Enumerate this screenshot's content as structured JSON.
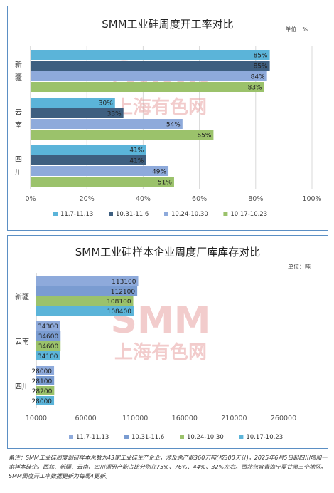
{
  "charts": [
    {
      "title": "SMM工业硅周度开工率对比",
      "unit": "单位：%",
      "chart_data": {
        "type": "bar",
        "orientation": "horizontal",
        "categories": [
          "新疆",
          "云南",
          "四川"
        ],
        "series": [
          {
            "name": "11.7-11.13",
            "color": "#5bb4d9",
            "values": [
              85,
              30,
              41
            ],
            "labels": [
              "85%",
              "30%",
              "41%"
            ]
          },
          {
            "name": "10.31-11.6",
            "color": "#3e5f80",
            "values": [
              85,
              33,
              41
            ],
            "labels": [
              "85%",
              "33%",
              "41%"
            ]
          },
          {
            "name": "10.24-10.30",
            "color": "#8eaadb",
            "values": [
              84,
              54,
              49
            ],
            "labels": [
              "84%",
              "54%",
              "49%"
            ]
          },
          {
            "name": "10.17-10.23",
            "color": "#9bc26b",
            "values": [
              83,
              65,
              51
            ],
            "labels": [
              "83%",
              "65%",
              "51%"
            ]
          }
        ],
        "xlim": [
          0,
          100
        ],
        "xticks": [
          "0%",
          "20%",
          "40%",
          "60%",
          "80%",
          "100%"
        ],
        "xtick_values": [
          0,
          20,
          40,
          60,
          80,
          100
        ],
        "grid": true,
        "legend": "bottom"
      }
    },
    {
      "title": "SMM工业硅样本企业周度厂库库存对比",
      "unit": "单位：吨",
      "chart_data": {
        "type": "bar",
        "orientation": "horizontal",
        "categories": [
          "新疆",
          "云南",
          "四川"
        ],
        "series": [
          {
            "name": "11.7-11.13",
            "color": "#8eaadb",
            "values": [
              113100,
              34300,
              28000
            ],
            "labels": [
              "113100",
              "34300",
              "28000"
            ]
          },
          {
            "name": "10.31-11.6",
            "color": "#7a9cd1",
            "values": [
              112100,
              34600,
              28100
            ],
            "labels": [
              "112100",
              "34600",
              "28100"
            ]
          },
          {
            "name": "10.24-10.30",
            "color": "#9bc26b",
            "values": [
              108100,
              34600,
              28200
            ],
            "labels": [
              "108100",
              "34600",
              "28200"
            ]
          },
          {
            "name": "10.17-10.23",
            "color": "#5bb4d9",
            "values": [
              108400,
              34100,
              28000
            ],
            "labels": [
              "108400",
              "34100",
              "28000"
            ]
          }
        ],
        "xlim": [
          10000,
          260000
        ],
        "xticks": [
          "10000",
          "60000",
          "110000",
          "160000",
          "210000",
          "260000"
        ],
        "xtick_values": [
          10000,
          60000,
          110000,
          160000,
          210000,
          260000
        ],
        "grid": false,
        "legend": "bottom"
      }
    }
  ],
  "watermark": {
    "latin": "SMM",
    "chinese": "上海有色网"
  },
  "note": "备注：SMM工业硅周度调研样本总数为43家工业硅生产企业，涉及总产能360万吨(按300天计)，2025年6月5日起四川增加一家样本硅企。西北、新疆、云南、四川调研产能占比分别在75%、76%、44%、32%左右。西北包含青海宁夏甘肃三个地区。SMM周度开工率数据更新为每周4更新。"
}
